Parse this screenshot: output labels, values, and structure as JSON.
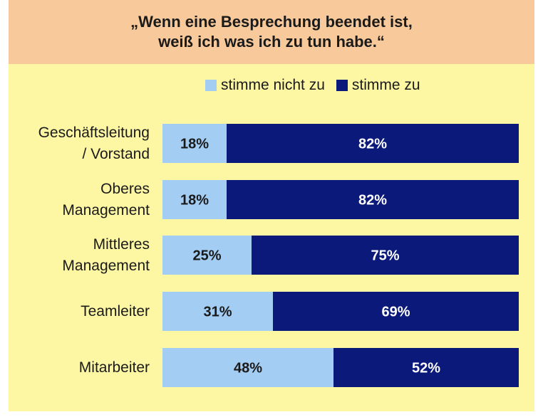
{
  "title": {
    "line1": "„Wenn eine Besprechung beendet ist,",
    "line2": "weiß ich was ich zu tun habe.“"
  },
  "colors": {
    "background": "#fdf7a4",
    "header": "#f8c99a",
    "disagree": "#a4cdf4",
    "agree": "#0b1a7a"
  },
  "legend": {
    "disagree": "stimme nicht zu",
    "agree": "stimme zu"
  },
  "chart_data": {
    "type": "bar",
    "orientation": "horizontal",
    "stacked": true,
    "categories": [
      [
        "Geschäftsleitung",
        "/ Vorstand"
      ],
      [
        "Oberes",
        "Management"
      ],
      [
        "Mittleres",
        "Management"
      ],
      [
        "Teamleiter"
      ],
      [
        "Mitarbeiter"
      ]
    ],
    "series": [
      {
        "name": "stimme nicht zu",
        "values": [
          18,
          18,
          25,
          31,
          48
        ]
      },
      {
        "name": "stimme zu",
        "values": [
          82,
          82,
          75,
          69,
          52
        ]
      }
    ],
    "data_labels": [
      [
        "18%",
        "82%"
      ],
      [
        "18%",
        "82%"
      ],
      [
        "25%",
        "75%"
      ],
      [
        "31%",
        "69%"
      ],
      [
        "48%",
        "52%"
      ]
    ],
    "xlim": [
      0,
      100
    ],
    "legend_position": "top",
    "grid": false
  }
}
